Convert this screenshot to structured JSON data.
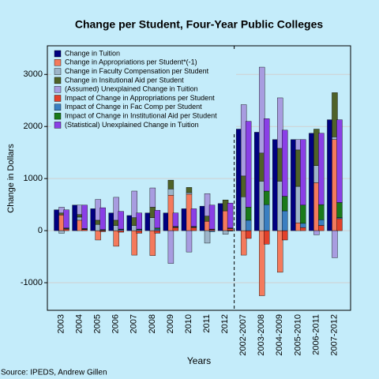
{
  "chart_data": {
    "type": "bar",
    "title": "Change per Student, Four-Year Public Colleges",
    "x_label": "Years",
    "y_label": "Change in Dollars",
    "source": "Source: IPEDS, Andrew Gillen",
    "categories": [
      "2003",
      "2004",
      "2005",
      "2006",
      "2007",
      "2008",
      "2009",
      "2010",
      "2011",
      "2012",
      "2002-2007",
      "2003-2008",
      "2004-2009",
      "2005-2010",
      "2006-2011",
      "2007-2012"
    ],
    "ylim": [
      -1530,
      3550
    ],
    "yticks": [
      -1000,
      0,
      1000,
      2000,
      3000
    ],
    "grid": true,
    "legend": "upper-left",
    "series": [
      {
        "name": "Change in Tuition",
        "color": "#000080",
        "stack": "tuition",
        "values": [
          400,
          490,
          420,
          340,
          290,
          340,
          340,
          420,
          470,
          520,
          1950,
          1890,
          1750,
          1750,
          1870,
          2130
        ]
      },
      {
        "name": "Change in Appropriations per Student*(-1)",
        "color": "#f47a5c",
        "stack": "a",
        "values": [
          300,
          200,
          -180,
          -300,
          -470,
          -480,
          680,
          700,
          180,
          380,
          -470,
          -1250,
          -800,
          150,
          920,
          1750
        ]
      },
      {
        "name": "Change in Faculty Compensation per Student",
        "color": "#9db5c9",
        "stack": "a",
        "values": [
          -50,
          60,
          120,
          100,
          100,
          250,
          120,
          30,
          -240,
          -70,
          650,
          950,
          950,
          700,
          330,
          50
        ]
      },
      {
        "name": "Change in Insitutional Aid per Student",
        "color": "#4f6228",
        "stack": "a",
        "values": [
          40,
          50,
          80,
          100,
          150,
          200,
          170,
          100,
          100,
          210,
          400,
          540,
          630,
          700,
          700,
          850
        ]
      },
      {
        "name": "(Assumed) Unexplained Change in Tuition",
        "color": "#a89ce0",
        "stack": "a",
        "values": [
          110,
          180,
          400,
          440,
          510,
          370,
          -630,
          -410,
          430,
          0,
          1370,
          1650,
          970,
          200,
          -80,
          -520
        ]
      },
      {
        "name": "Impact of Change in Appropriations per Student",
        "color": "#e2412b",
        "stack": "b",
        "values": [
          30,
          20,
          -20,
          -30,
          -50,
          -50,
          60,
          60,
          20,
          40,
          -150,
          -260,
          -180,
          60,
          100,
          230
        ]
      },
      {
        "name": "Impact of Change in Fac Comp per Student",
        "color": "#3a7fc1",
        "stack": "b",
        "values": [
          10,
          10,
          10,
          20,
          20,
          30,
          10,
          10,
          -20,
          -10,
          200,
          500,
          380,
          80,
          110,
          20
        ]
      },
      {
        "name": "Impact of Change in Institutional Aid per Student",
        "color": "#1a7a1a",
        "stack": "b",
        "values": [
          10,
          10,
          10,
          10,
          10,
          20,
          10,
          10,
          10,
          10,
          250,
          260,
          280,
          350,
          290,
          290
        ]
      },
      {
        "name": "(Statistical) Unexplained Change in Tuition",
        "color": "#8a3fe6",
        "stack": "b",
        "values": [
          350,
          450,
          420,
          340,
          310,
          340,
          260,
          340,
          460,
          480,
          1650,
          1390,
          1270,
          1260,
          1370,
          1590
        ]
      }
    ]
  }
}
